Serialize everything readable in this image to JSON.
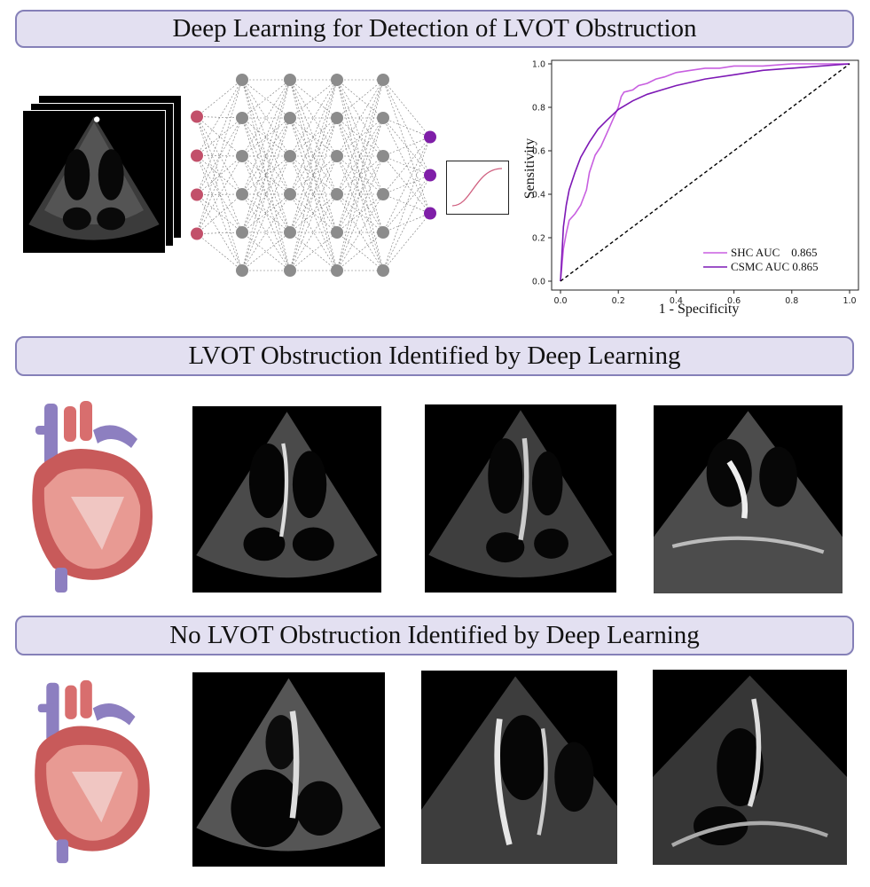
{
  "banners": {
    "top": "Deep Learning for Detection of LVOT Obstruction",
    "middle": "LVOT Obstruction Identified by Deep Learning",
    "bottom": "No LVOT Obstruction Identified by Deep Learning"
  },
  "network": {
    "input_nodes": 4,
    "hidden_layers": 4,
    "hidden_nodes": 6,
    "output_nodes": 3,
    "input_color": "#c2506a",
    "hidden_color": "#8c8c8c",
    "output_color": "#7f1ea8"
  },
  "colors": {
    "banner_fill": "#e3e0f1",
    "banner_border": "#8580b8",
    "shc_line": "#c85fe0",
    "csmc_line": "#7d18b5"
  },
  "chart_data": {
    "type": "line",
    "xlabel": "1 - Specificity",
    "ylabel": "Sensitivity",
    "xlim": [
      0.0,
      1.0
    ],
    "ylim": [
      0.0,
      1.0
    ],
    "xticks": [
      "0.0",
      "0.2",
      "0.4",
      "0.6",
      "0.8",
      "1.0"
    ],
    "yticks": [
      "0.0",
      "0.2",
      "0.4",
      "0.6",
      "0.8",
      "1.0"
    ],
    "legend_position": "bottom-right",
    "series": [
      {
        "name": "SHC AUC    0.865",
        "color": "#c85fe0",
        "x": [
          0.0,
          0.01,
          0.02,
          0.03,
          0.05,
          0.07,
          0.09,
          0.1,
          0.12,
          0.14,
          0.16,
          0.18,
          0.2,
          0.21,
          0.22,
          0.25,
          0.27,
          0.3,
          0.33,
          0.36,
          0.4,
          0.45,
          0.5,
          0.55,
          0.6,
          0.7,
          0.8,
          0.9,
          1.0
        ],
        "y": [
          0.0,
          0.15,
          0.22,
          0.28,
          0.31,
          0.35,
          0.42,
          0.5,
          0.58,
          0.62,
          0.68,
          0.74,
          0.8,
          0.85,
          0.87,
          0.88,
          0.9,
          0.91,
          0.93,
          0.94,
          0.96,
          0.97,
          0.98,
          0.98,
          0.99,
          0.99,
          1.0,
          1.0,
          1.0
        ]
      },
      {
        "name": "CSMC AUC 0.865",
        "color": "#7d18b5",
        "x": [
          0.0,
          0.01,
          0.02,
          0.03,
          0.05,
          0.07,
          0.1,
          0.13,
          0.16,
          0.2,
          0.25,
          0.3,
          0.35,
          0.4,
          0.5,
          0.6,
          0.7,
          0.8,
          0.9,
          1.0
        ],
        "y": [
          0.0,
          0.25,
          0.35,
          0.42,
          0.5,
          0.57,
          0.64,
          0.7,
          0.74,
          0.79,
          0.83,
          0.86,
          0.88,
          0.9,
          0.93,
          0.95,
          0.97,
          0.98,
          0.99,
          1.0
        ]
      },
      {
        "name": "",
        "color": "#000000",
        "dashed": true,
        "x": [
          0.0,
          1.0
        ],
        "y": [
          0.0,
          1.0
        ]
      }
    ]
  }
}
